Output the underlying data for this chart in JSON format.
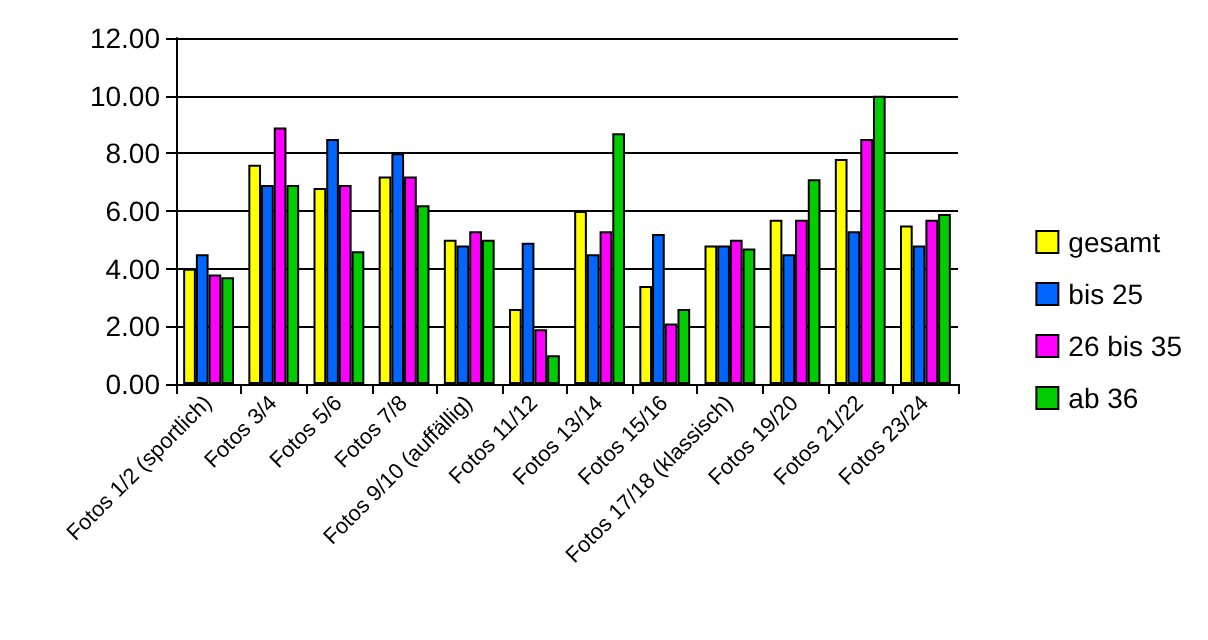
{
  "chart_data": {
    "type": "bar",
    "categories": [
      "Fotos 1/2 (sportlich)",
      "Fotos 3/4",
      "Fotos 5/6",
      "Fotos 7/8",
      "Fotos 9/10 (auffällig)",
      "Fotos 11/12",
      "Fotos 13/14",
      "Fotos 15/16",
      "Fotos 17/18 (klassisch)",
      "Fotos 19/20",
      "Fotos 21/22",
      "Fotos 23/24"
    ],
    "series": [
      {
        "name": "gesamt",
        "color": "#ffff00",
        "values": [
          4.0,
          7.6,
          6.8,
          7.2,
          5.0,
          2.6,
          6.0,
          3.4,
          4.8,
          5.7,
          7.8,
          5.5
        ]
      },
      {
        "name": "bis 25",
        "color": "#0066ff",
        "values": [
          4.5,
          6.9,
          8.5,
          8.0,
          4.8,
          4.9,
          4.5,
          5.2,
          4.8,
          4.5,
          5.3,
          4.8
        ]
      },
      {
        "name": "26 bis 35",
        "color": "#ff00ff",
        "values": [
          3.8,
          8.9,
          6.9,
          7.2,
          5.3,
          1.9,
          5.3,
          2.1,
          5.0,
          5.7,
          8.5,
          5.7
        ]
      },
      {
        "name": "ab 36",
        "color": "#00cc00",
        "values": [
          3.7,
          6.9,
          4.6,
          6.2,
          5.0,
          1.0,
          8.7,
          2.6,
          4.7,
          7.1,
          10.0,
          5.9
        ]
      }
    ],
    "ylim": [
      0,
      12
    ],
    "yticks": [
      {
        "value": 0,
        "label": "0.00"
      },
      {
        "value": 2,
        "label": "2.00"
      },
      {
        "value": 4,
        "label": "4.00"
      },
      {
        "value": 6,
        "label": "6.00"
      },
      {
        "value": 8,
        "label": "8.00"
      },
      {
        "value": 10,
        "label": "10.00"
      },
      {
        "value": 12,
        "label": "12.00"
      }
    ],
    "grid": "y",
    "legend": "right"
  }
}
